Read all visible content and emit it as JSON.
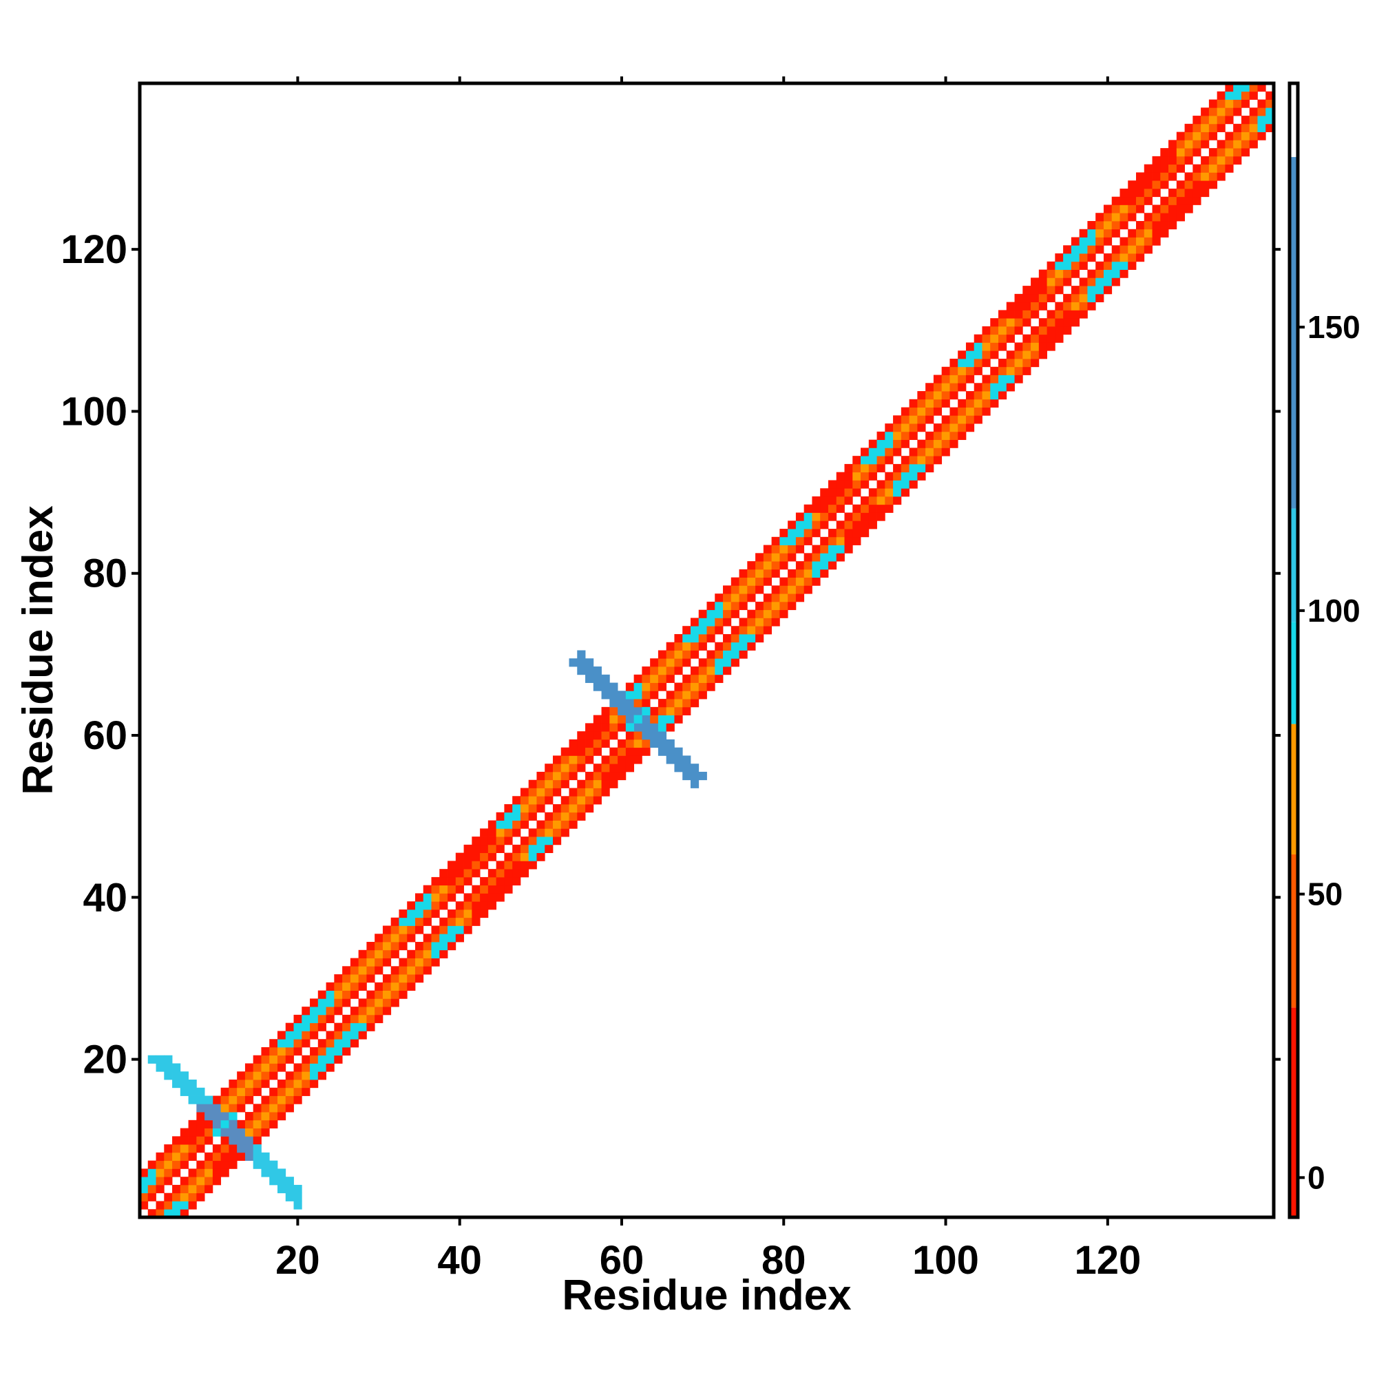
{
  "chart_data": {
    "type": "heatmap",
    "title": "",
    "xlabel": "Residue index",
    "ylabel": "Residue index",
    "xlim": [
      1,
      140
    ],
    "ylim": [
      1,
      140
    ],
    "x_ticks": [
      20,
      40,
      60,
      80,
      100,
      120
    ],
    "y_ticks": [
      20,
      40,
      60,
      80,
      100,
      120
    ],
    "colorbar": {
      "range": [
        -7,
        193
      ],
      "ticks": [
        0,
        50,
        100,
        150
      ],
      "bands": [
        {
          "from": -7,
          "to": 30,
          "color": "#ff1500"
        },
        {
          "from": 30,
          "to": 57,
          "color": "#ff5a00"
        },
        {
          "from": 57,
          "to": 80,
          "color": "#ff9a00"
        },
        {
          "from": 80,
          "to": 98,
          "color": "#18d8e8"
        },
        {
          "from": 98,
          "to": 118,
          "color": "#30c8e6"
        },
        {
          "from": 118,
          "to": 180,
          "color": "#4a90c8"
        },
        {
          "from": 180,
          "to": 193,
          "color": "#ffffff"
        }
      ]
    },
    "colors": {
      "red": "#ff1500",
      "orange": "#ff5a00",
      "amber": "#ff9a00",
      "cyan": "#18d8e8",
      "skyblue": "#30c8e6",
      "steelblue": "#4a90c8",
      "slateblue": "#5a8cc0"
    },
    "band_pattern": {
      "offsets": [
        1,
        2,
        3,
        4,
        5
      ],
      "default_colors": {
        "1": "red",
        "2": "orange",
        "3": "amber",
        "4": "orange",
        "5": "red"
      },
      "cyan_segments": [
        [
          2,
          4
        ],
        [
          20,
          26
        ],
        [
          35,
          38
        ],
        [
          47,
          49
        ],
        [
          62,
          64
        ],
        [
          70,
          74
        ],
        [
          82,
          85
        ],
        [
          92,
          95
        ],
        [
          104,
          106
        ],
        [
          116,
          120
        ],
        [
          137,
          140
        ]
      ],
      "red_heavy_segments": [
        [
          8,
          12
        ],
        [
          40,
          46
        ],
        [
          56,
          60
        ],
        [
          86,
          90
        ],
        [
          110,
          114
        ],
        [
          124,
          130
        ]
      ]
    },
    "cross_regions": [
      {
        "center": [
          11,
          12
        ],
        "arm_length": 8,
        "color": "skyblue",
        "core_color": "slateblue"
      },
      {
        "center": [
          62,
          62
        ],
        "arm_length": 7,
        "color": "steelblue",
        "core_color": "steelblue"
      }
    ]
  }
}
